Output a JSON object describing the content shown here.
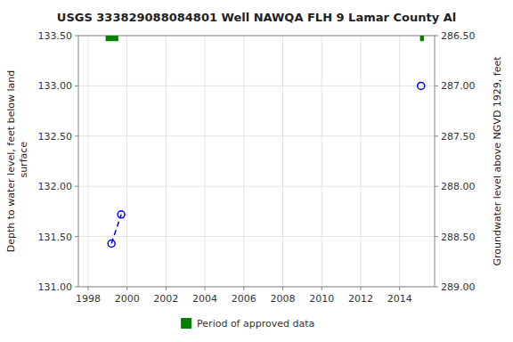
{
  "chart_data": {
    "type": "scatter",
    "title": "USGS 333829088084801 Well NAWQA FLH 9 Lamar County Al",
    "ylabel": "Depth to water level, feet below land\n surface",
    "y2label": "Groundwater level above NGVD 1929, feet",
    "series": [
      {
        "type": "line",
        "line_style": "dashed",
        "color": "#0000ff",
        "x": [
          1999.2,
          1999.7
        ],
        "values": [
          131.43,
          131.72
        ]
      },
      {
        "type": "scatter",
        "marker": "open-circle",
        "color": "#0000ff",
        "x": [
          1999.2,
          1999.7,
          2015.1
        ],
        "values": [
          131.43,
          131.72,
          133.0
        ]
      }
    ],
    "periods": [
      {
        "name": "Period of approved data",
        "color": "#008000",
        "ranges": [
          [
            1998.9,
            1999.55
          ],
          [
            2015.05,
            2015.25
          ]
        ]
      }
    ],
    "xlim": [
      1997.5,
      2015.8
    ],
    "xticks": [
      1998,
      2000,
      2002,
      2004,
      2006,
      2008,
      2010,
      2012,
      2014
    ],
    "ylim": [
      131.0,
      133.5
    ],
    "yticks": [
      {
        "value": 131.0,
        "label": "131.00"
      },
      {
        "value": 131.5,
        "label": "131.50"
      },
      {
        "value": 132.0,
        "label": "132.00"
      },
      {
        "value": 132.5,
        "label": "132.50"
      },
      {
        "value": 133.0,
        "label": "133.00"
      },
      {
        "value": 133.5,
        "label": "133.50"
      }
    ],
    "y2lim": [
      289.0,
      286.5
    ],
    "y2ticks": [
      {
        "value": 289.0,
        "label": "289.00"
      },
      {
        "value": 288.5,
        "label": "288.50"
      },
      {
        "value": 288.0,
        "label": "288.00"
      },
      {
        "value": 287.5,
        "label": "287.50"
      },
      {
        "value": 287.0,
        "label": "287.00"
      },
      {
        "value": 286.5,
        "label": "286.50"
      }
    ],
    "grid": true,
    "legend": "bottom"
  }
}
